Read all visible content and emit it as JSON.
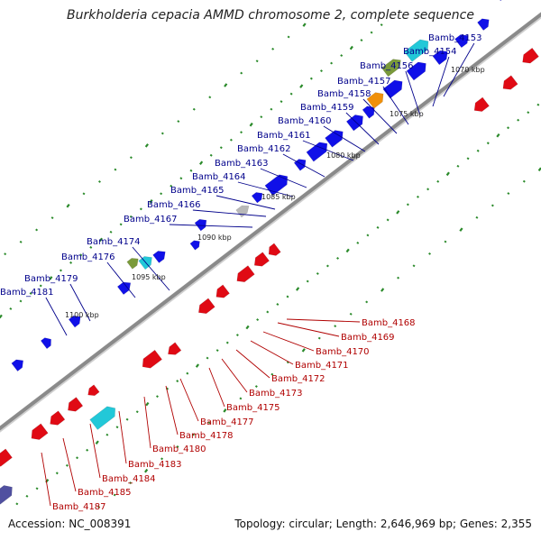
{
  "title": "Burkholderia cepacia AMMD chromosome 2, complete sequence",
  "footer": {
    "accession": "Accession: NC_008391",
    "summary": "Topology: circular; Length: 2,646,969 bp; Genes: 2,355"
  },
  "colors": {
    "forward": "#1010e8",
    "reverse": "#e00a14",
    "backbone": "#8a8a8a",
    "tick": "#2a8a2a",
    "forward_label": "#00008b",
    "reverse_label": "#b00000"
  },
  "kbp_labels": [
    "1070 kbp",
    "1075 kbp",
    "1080 kbp",
    "1085 kbp",
    "1090 kbp",
    "1095 kbp",
    "1100 kbp"
  ],
  "forward_genes": [
    "Bamb_4153",
    "Bamb_4154",
    "Bamb_4156",
    "Bamb_4157",
    "Bamb_4158",
    "Bamb_4159",
    "Bamb_4160",
    "Bamb_4161",
    "Bamb_4162",
    "Bamb_4163",
    "Bamb_4164",
    "Bamb_4165",
    "Bamb_4166",
    "Bamb_4167",
    "Bamb_4174",
    "Bamb_4176",
    "Bamb_4179",
    "Bamb_4181"
  ],
  "reverse_genes": [
    "Bamb_4168",
    "Bamb_4169",
    "Bamb_4170",
    "Bamb_4171",
    "Bamb_4172",
    "Bamb_4173",
    "Bamb_4175",
    "Bamb_4177",
    "Bamb_4178",
    "Bamb_4180",
    "Bamb_4183",
    "Bamb_4184",
    "Bamb_4185",
    "Bamb_4187"
  ]
}
